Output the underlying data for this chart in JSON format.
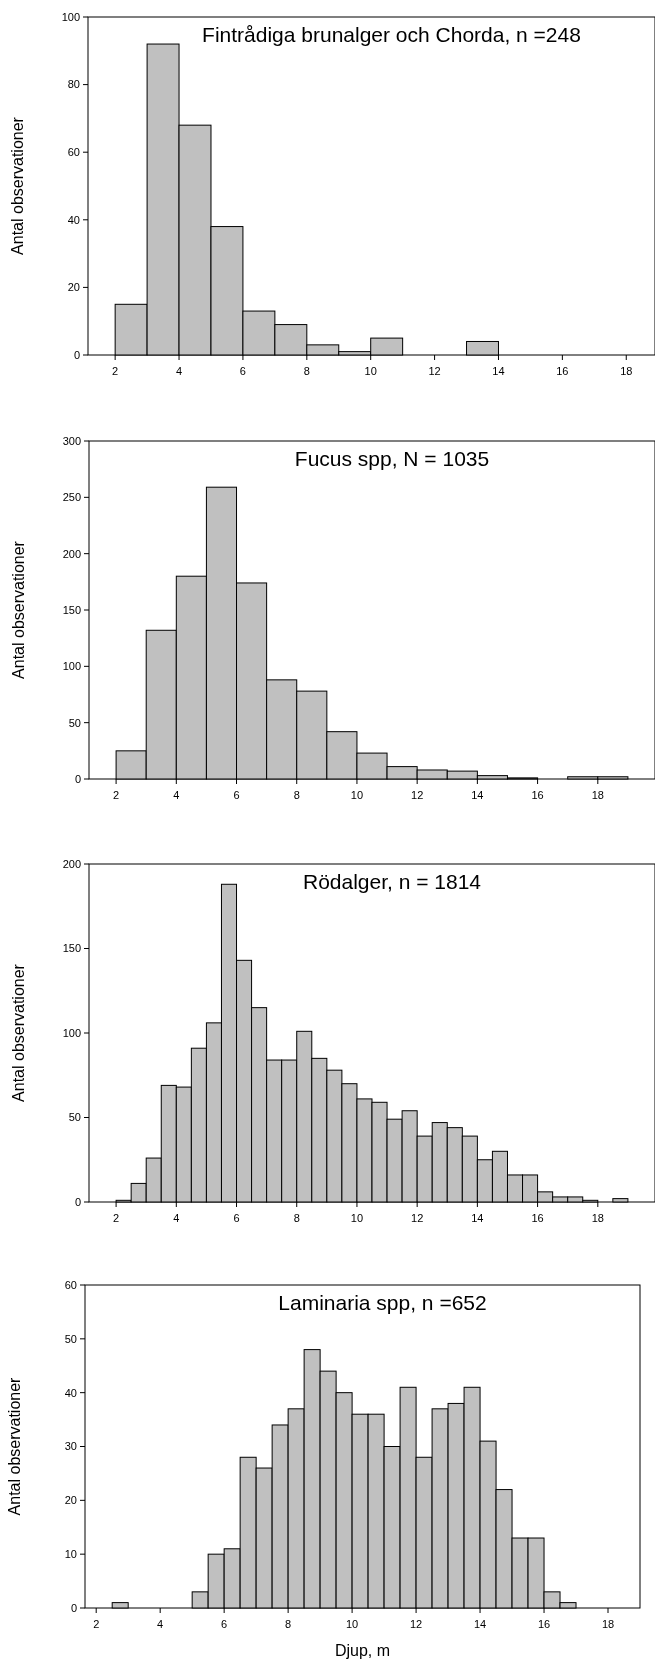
{
  "chart_data": [
    {
      "type": "histogram",
      "title": "Fintrådiga brunalger och Chorda, n =248",
      "ylabel": "Antal observationer",
      "color": "#c0c0c0",
      "bins": [
        2,
        3,
        4,
        5,
        6,
        7,
        8,
        9,
        10,
        11,
        12,
        13,
        14
      ],
      "values": [
        15,
        92,
        68,
        38,
        13,
        9,
        3,
        1,
        5,
        0,
        0,
        4
      ],
      "xlim": [
        1.15,
        18.9
      ],
      "xticks": [
        2,
        4,
        6,
        8,
        10,
        12,
        14,
        16,
        18
      ],
      "ylim": [
        0,
        100
      ],
      "yticks": [
        0,
        20,
        40,
        60,
        80,
        100
      ]
    },
    {
      "type": "histogram",
      "title": "Fucus spp, N = 1035",
      "ylabel": "Antal observationer",
      "color": "#c0c0c0",
      "bins": [
        2,
        3,
        4,
        5,
        6,
        7,
        8,
        9,
        10,
        11,
        12,
        13,
        14,
        15,
        16,
        17,
        18,
        19
      ],
      "values": [
        25,
        132,
        180,
        259,
        174,
        88,
        78,
        42,
        23,
        11,
        8,
        7,
        3,
        1,
        0,
        2,
        2
      ],
      "xlim": [
        1.1,
        19.9
      ],
      "xticks": [
        2,
        4,
        6,
        8,
        10,
        12,
        14,
        16,
        18
      ],
      "ylim": [
        0,
        300
      ],
      "yticks": [
        0,
        50,
        100,
        150,
        200,
        250,
        300
      ]
    },
    {
      "type": "histogram",
      "title": "Rödalger, n = 1814",
      "ylabel": "Antal observationer",
      "color": "#c0c0c0",
      "bins": [
        2,
        2.5,
        3,
        3.5,
        4,
        4.5,
        5,
        5.5,
        6,
        6.5,
        7,
        7.5,
        8,
        8.5,
        9,
        9.5,
        10,
        10.5,
        11,
        11.5,
        12,
        12.5,
        13,
        13.5,
        14,
        14.5,
        15,
        15.5,
        16,
        16.5,
        17,
        17.5,
        18,
        18.5,
        19
      ],
      "values": [
        1,
        11,
        26,
        69,
        68,
        91,
        106,
        188,
        143,
        115,
        84,
        84,
        101,
        85,
        78,
        70,
        61,
        59,
        49,
        54,
        39,
        47,
        44,
        39,
        25,
        30,
        16,
        16,
        6,
        3,
        3,
        1,
        0,
        2
      ],
      "xlim": [
        1.1,
        19.9
      ],
      "xticks": [
        2,
        4,
        6,
        8,
        10,
        12,
        14,
        16,
        18
      ],
      "ylim": [
        0,
        200
      ],
      "yticks": [
        0,
        50,
        100,
        150,
        200
      ]
    },
    {
      "type": "histogram",
      "title": "Laminaria spp, n =652",
      "xlabel": "Djup, m",
      "ylabel": "Antal observationer",
      "color": "#c0c0c0",
      "bins": [
        2,
        2.5,
        3,
        3.5,
        4,
        4.5,
        5,
        5.5,
        6,
        6.5,
        7,
        7.5,
        8,
        8.5,
        9,
        9.5,
        10,
        10.5,
        11,
        11.5,
        12,
        12.5,
        13,
        13.5,
        14,
        14.5,
        15,
        15.5,
        16,
        16.5,
        17
      ],
      "values": [
        0,
        1,
        0,
        0,
        0,
        0,
        3,
        10,
        11,
        28,
        26,
        34,
        37,
        48,
        44,
        40,
        36,
        36,
        30,
        41,
        28,
        37,
        38,
        41,
        31,
        22,
        13,
        13,
        3,
        1
      ],
      "xlim": [
        1.65,
        19
      ],
      "xticks": [
        2,
        4,
        6,
        8,
        10,
        12,
        14,
        16,
        18
      ],
      "ylim": [
        0,
        60
      ],
      "yticks": [
        0,
        10,
        20,
        30,
        40,
        50,
        60
      ]
    }
  ]
}
